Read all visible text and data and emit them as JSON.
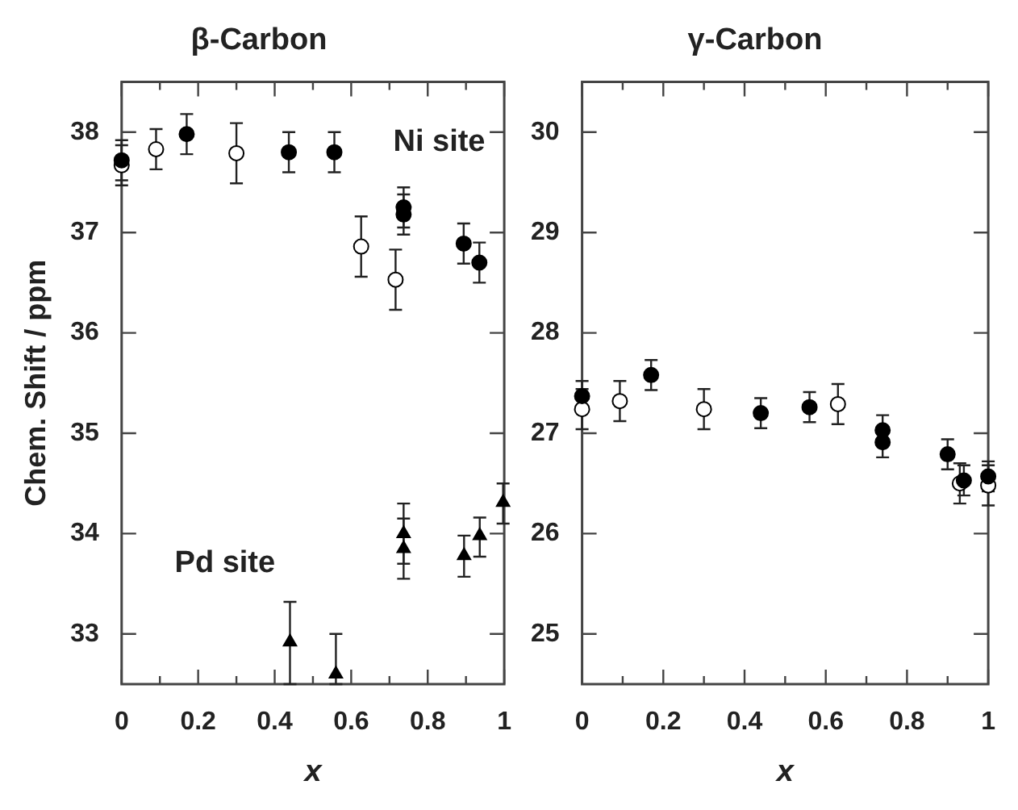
{
  "chart_data": [
    {
      "type": "scatter",
      "title": "β-Carbon",
      "xlabel": "x",
      "ylabel": "Chem. Shift / ppm",
      "xlim": [
        0,
        1
      ],
      "ylim": [
        32.5,
        38.5
      ],
      "xticks": [
        0,
        {
          "value": 0.1,
          "label": null
        },
        0.2,
        {
          "value": 0.3,
          "label": null
        },
        0.4,
        {
          "value": 0.5,
          "label": null
        },
        0.6,
        {
          "value": 0.7,
          "label": null
        },
        0.8,
        {
          "value": 0.9,
          "label": null
        },
        1
      ],
      "yticks": [
        33,
        34,
        35,
        36,
        37,
        38
      ],
      "grid": false,
      "legend": false,
      "annotations": [
        "Ni site",
        "Pd site"
      ],
      "series": [
        {
          "color": "#000000",
          "marker": "circle",
          "x": [
            0,
            0.17,
            0.437,
            0.556,
            0.737,
            0.737,
            0.894,
            0.935
          ],
          "values": [
            37.72,
            37.98,
            37.8,
            37.8,
            37.25,
            37.18,
            36.89,
            36.7
          ],
          "errors": [
            0.2,
            0.2,
            0.2,
            0.2,
            0.2,
            0.2,
            0.2,
            0.2
          ]
        },
        {
          "color": "#ffffff",
          "marker": "circle",
          "x": [
            0,
            0.09,
            0.3,
            0.626,
            0.716
          ],
          "values": [
            37.67,
            37.83,
            37.79,
            36.86,
            36.53
          ],
          "errors": [
            0.2,
            0.2,
            0.3,
            0.3,
            0.3
          ]
        },
        {
          "color": "#000000",
          "marker": "triangle",
          "x": [
            0.44,
            0.56,
            0.737,
            0.737,
            0.895,
            0.936,
            0.997
          ],
          "values": [
            32.92,
            32.6,
            34.0,
            33.85,
            33.78,
            33.98,
            34.31
          ],
          "errors": [
            [
              32.5,
              33.32
            ],
            [
              32.5,
              33.0
            ],
            [
              33.7,
              34.3
            ],
            [
              33.55,
              34.15
            ],
            [
              33.57,
              33.98
            ],
            [
              33.77,
              34.16
            ],
            [
              34.1,
              34.5
            ]
          ]
        }
      ]
    },
    {
      "type": "scatter",
      "title": "γ-Carbon",
      "xlabel": "x",
      "xlim": [
        0,
        1
      ],
      "ylim": [
        24.5,
        30.5
      ],
      "xticks": [
        0,
        {
          "value": 0.1,
          "label": null
        },
        0.2,
        {
          "value": 0.3,
          "label": null
        },
        0.4,
        {
          "value": 0.5,
          "label": null
        },
        0.6,
        {
          "value": 0.7,
          "label": null
        },
        0.8,
        {
          "value": 0.9,
          "label": null
        },
        1
      ],
      "yticks": [
        25,
        26,
        27,
        28,
        29,
        30
      ],
      "grid": false,
      "legend": false,
      "series": [
        {
          "color": "#000000",
          "marker": "circle",
          "x": [
            0,
            0.17,
            0.44,
            0.56,
            0.74,
            0.74,
            0.9,
            0.94,
            1
          ],
          "values": [
            27.37,
            27.58,
            27.2,
            27.26,
            27.03,
            26.91,
            26.79,
            26.53,
            26.57
          ],
          "errors": [
            0.15,
            0.15,
            0.15,
            0.15,
            0.15,
            0.15,
            0.15,
            0.15,
            0.15
          ]
        },
        {
          "color": "#ffffff",
          "marker": "circle",
          "x": [
            0,
            0.093,
            0.3,
            0.63,
            0.93,
            1
          ],
          "values": [
            27.24,
            27.32,
            27.24,
            27.29,
            26.5,
            26.48
          ],
          "errors": [
            0.2,
            0.2,
            0.2,
            0.2,
            0.2,
            0.2
          ]
        }
      ]
    }
  ]
}
